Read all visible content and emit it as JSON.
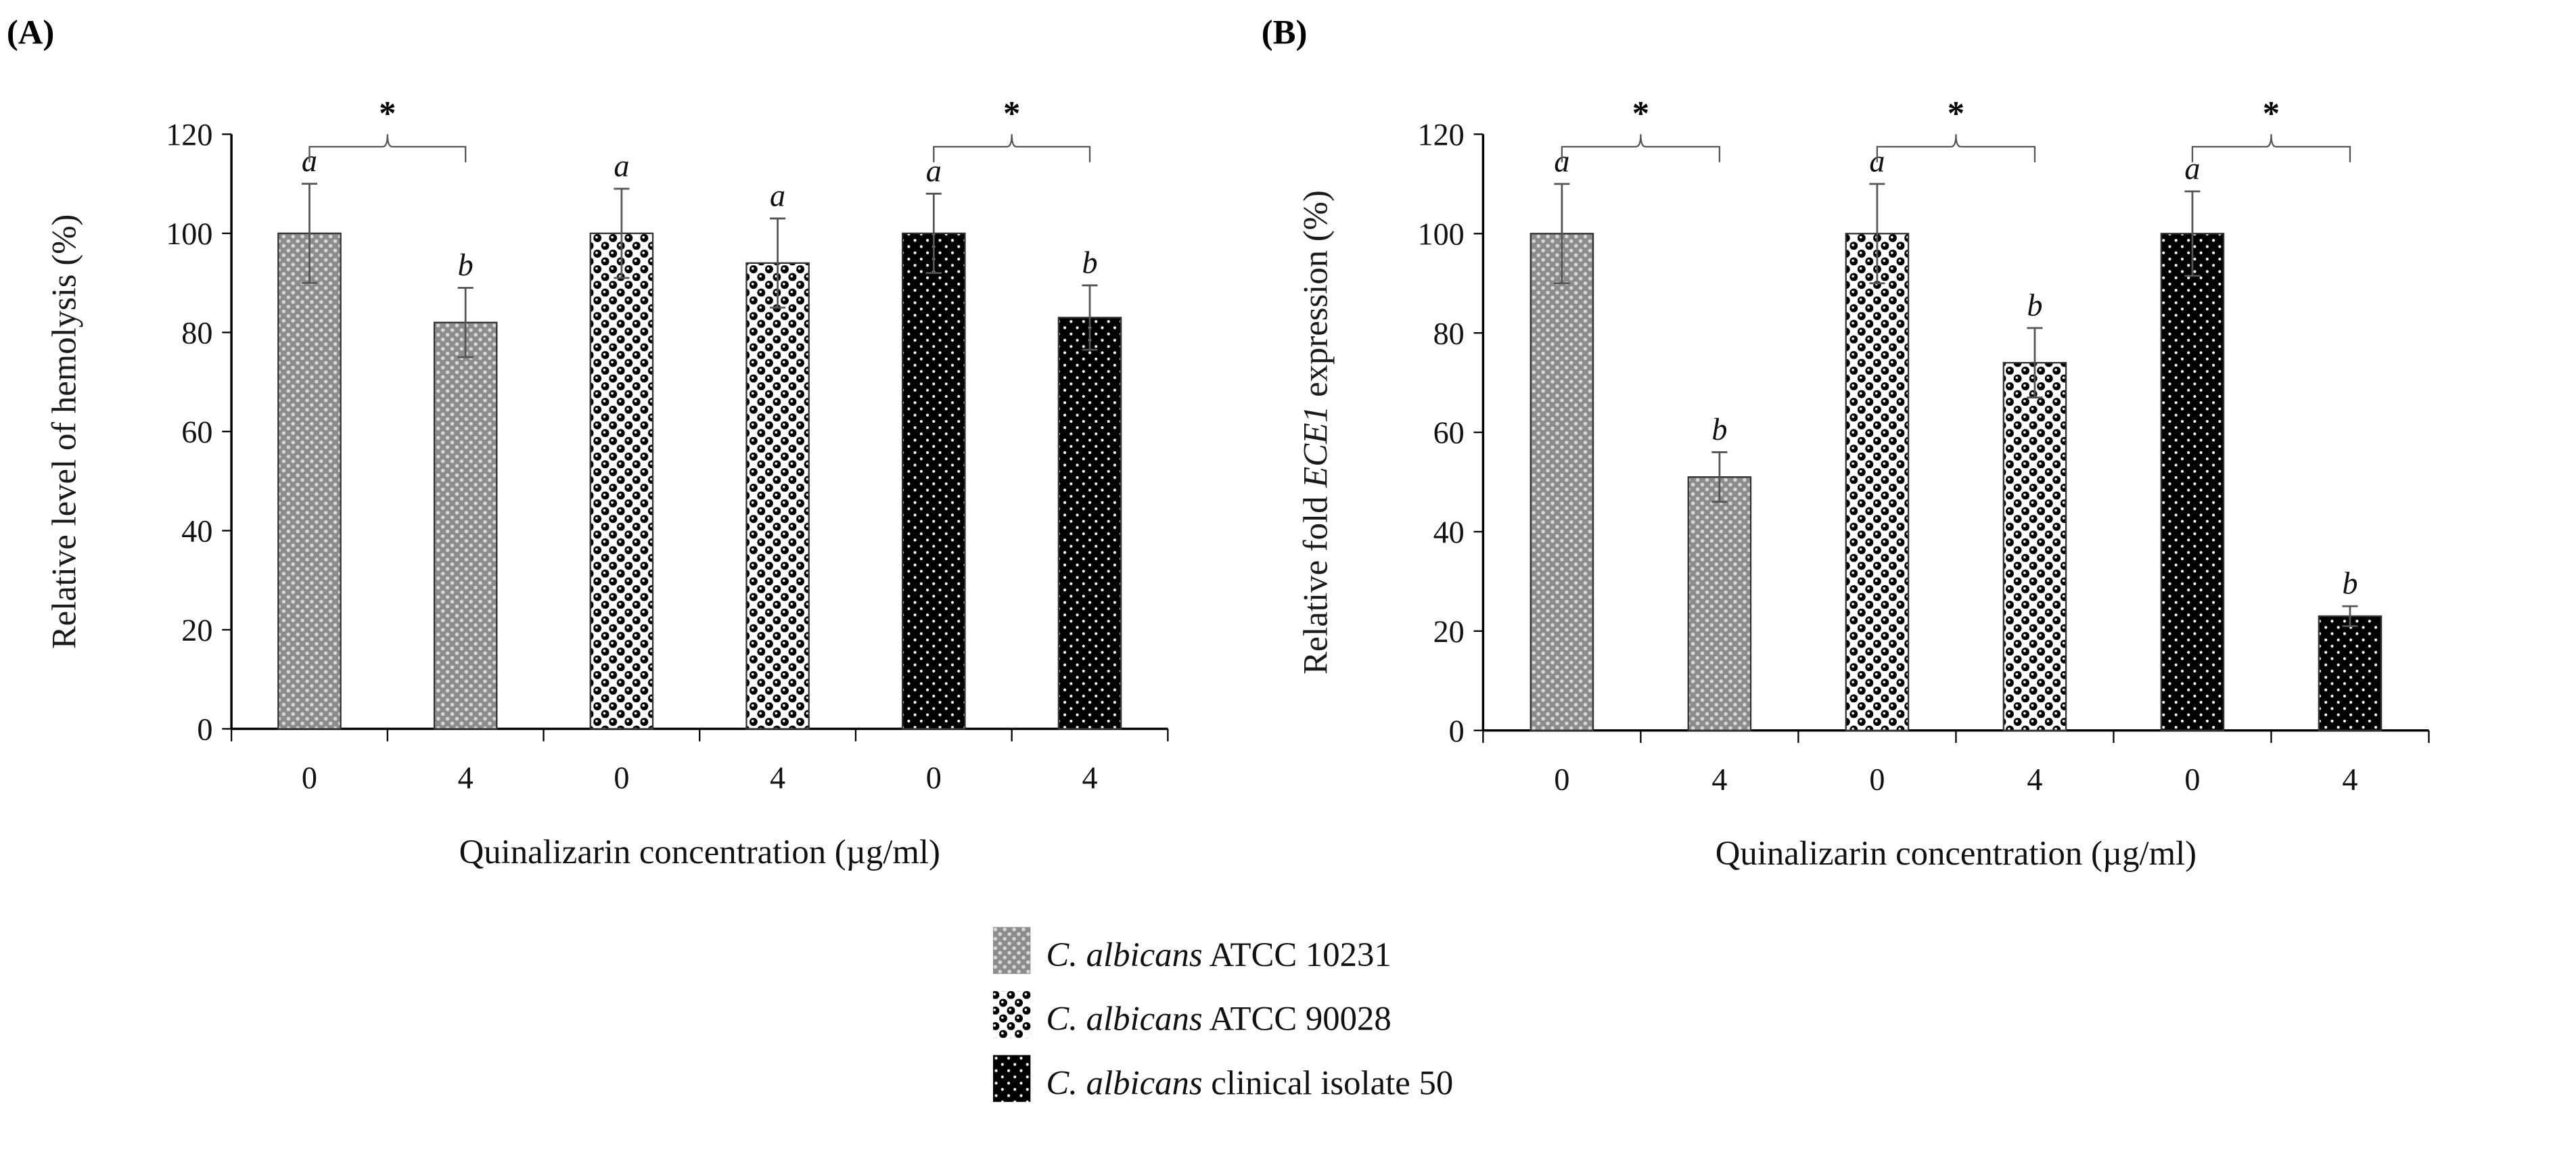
{
  "chart_data": [
    {
      "panel": "(A)",
      "type": "bar",
      "ylabel": "Relative level of  hemolysis (%)",
      "xlabel": "Quinalizarin concentration (µg/ml)",
      "ylim": [
        0,
        120
      ],
      "yticks": [
        0,
        20,
        40,
        60,
        80,
        100,
        120
      ],
      "categories": [
        "0",
        "4",
        "0",
        "4",
        "0",
        "4"
      ],
      "series_index": [
        0,
        0,
        1,
        1,
        2,
        2
      ],
      "values": [
        100,
        82,
        100,
        94,
        100,
        83
      ],
      "errors": [
        10,
        7,
        9,
        9,
        8,
        6.5
      ],
      "letters": [
        "a",
        "b",
        "a",
        "a",
        "a",
        "b"
      ],
      "significance": [
        {
          "from": 0,
          "to": 1,
          "label": "*"
        },
        {
          "from": 4,
          "to": 5,
          "label": "*"
        }
      ]
    },
    {
      "panel": "(B)",
      "type": "bar",
      "ylabel_pre": "Relative fold ",
      "ylabel_gene": "ECE1",
      "ylabel_post": " expression (%)",
      "xlabel": "Quinalizarin concentration (µg/ml)",
      "ylim": [
        0,
        120
      ],
      "yticks": [
        0,
        20,
        40,
        60,
        80,
        100,
        120
      ],
      "categories": [
        "0",
        "4",
        "0",
        "4",
        "0",
        "4"
      ],
      "series_index": [
        0,
        0,
        1,
        1,
        2,
        2
      ],
      "values": [
        100,
        51,
        100,
        74,
        100,
        23
      ],
      "errors": [
        10,
        5,
        10,
        7,
        8.5,
        2
      ],
      "letters": [
        "a",
        "b",
        "a",
        "b",
        "a",
        "b"
      ],
      "significance": [
        {
          "from": 0,
          "to": 1,
          "label": "*"
        },
        {
          "from": 2,
          "to": 3,
          "label": "*"
        },
        {
          "from": 4,
          "to": 5,
          "label": "*"
        }
      ]
    }
  ],
  "legend": [
    {
      "italic": "C. albicans",
      "rest": " ATCC 10231"
    },
    {
      "italic": "C. albicans",
      "rest": " ATCC 90028"
    },
    {
      "italic": "C. albicans",
      "rest": " clinical isolate 50"
    }
  ],
  "colors": {
    "series0": "#9a9a9a",
    "series1": "#ffffff",
    "series2": "#000000",
    "axis": "#000000",
    "ylabel": "#1a1a1a"
  }
}
